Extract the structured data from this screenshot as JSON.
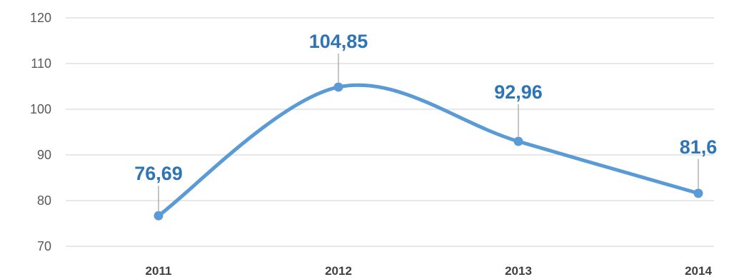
{
  "chart_data": {
    "type": "line",
    "categories": [
      "2011",
      "2012",
      "2013",
      "2014"
    ],
    "series": [
      {
        "values": [
          76.69,
          104.85,
          92.96,
          81.6
        ]
      }
    ],
    "data_labels": [
      "76,69",
      "104,85",
      "92,96",
      "81,6"
    ],
    "yticks": [
      "70",
      "80",
      "90",
      "100",
      "110",
      "120"
    ],
    "ylim": [
      70,
      120
    ],
    "grid": true,
    "smooth": true,
    "colors": {
      "line": "#5b9bd5",
      "label": "#2e75b6",
      "grid": "#d9d9d9",
      "leader": "#a6a6a6"
    }
  }
}
